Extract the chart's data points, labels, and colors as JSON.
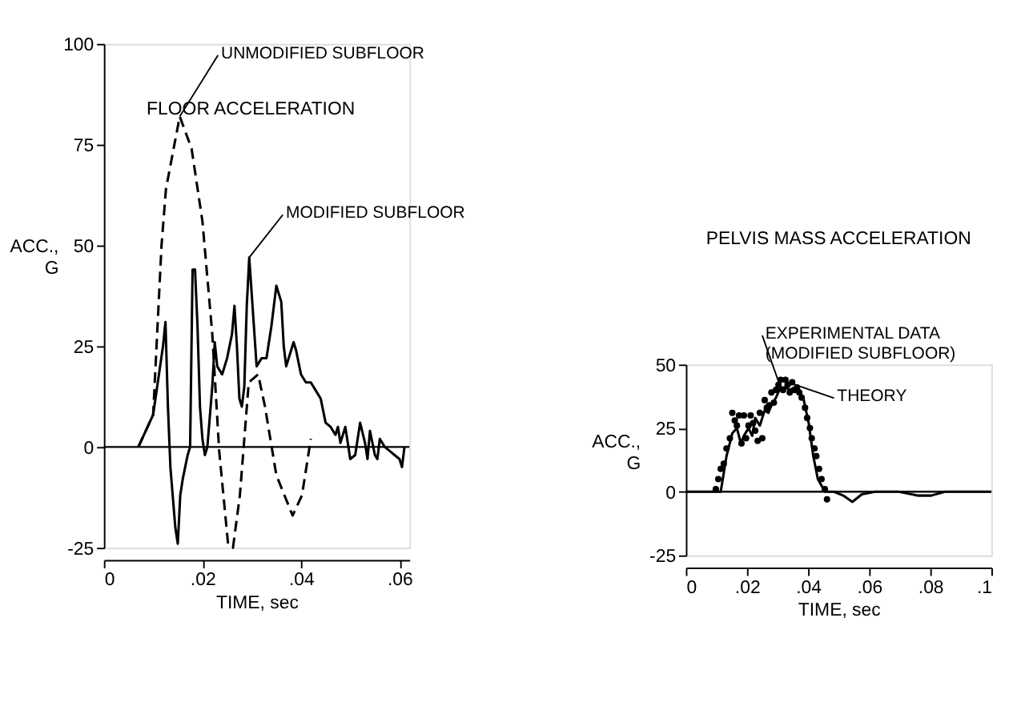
{
  "chart_data": [
    {
      "type": "line",
      "title": "FLOOR ACCELERATION",
      "xlabel": "TIME, sec",
      "ylabel": "ACC., G",
      "xlim": [
        0,
        0.062
      ],
      "xticks": [
        {
          "value": 0,
          "label": "0"
        },
        {
          "value": 0.02,
          "label": ".02"
        },
        {
          "value": 0.04,
          "label": ".04"
        },
        {
          "value": 0.06,
          "label": ".06"
        }
      ],
      "ylim": [
        -25,
        100
      ],
      "yticks": [
        -25,
        0,
        25,
        50,
        75,
        100
      ],
      "grid": false,
      "ref_lines": [
        {
          "axis": "y",
          "value": 0,
          "color": "#000000"
        }
      ],
      "series": [
        {
          "name": "UNMODIFIED SUBFLOOR",
          "color": "#000000",
          "line_style": "dashed",
          "x": [
            0.007,
            0.01,
            0.0117,
            0.0126,
            0.0154,
            0.0178,
            0.02,
            0.022,
            0.0234,
            0.0252,
            0.0262,
            0.0276,
            0.0294,
            0.0313,
            0.0327,
            0.035,
            0.0383,
            0.0402,
            0.042
          ],
          "values": [
            0,
            8,
            50,
            64,
            82,
            74,
            56,
            28,
            -1,
            -24,
            -25,
            -12,
            16,
            18,
            10,
            -7,
            -17,
            -12,
            2
          ]
        },
        {
          "name": "MODIFIED SUBFLOOR",
          "color": "#000000",
          "line_style": "solid",
          "x": [
            0.007,
            0.01,
            0.012,
            0.0125,
            0.013,
            0.0135,
            0.0145,
            0.015,
            0.0155,
            0.016,
            0.017,
            0.0175,
            0.018,
            0.0185,
            0.019,
            0.0195,
            0.02,
            0.0205,
            0.021,
            0.022,
            0.0225,
            0.023,
            0.024,
            0.025,
            0.026,
            0.0265,
            0.027,
            0.0275,
            0.028,
            0.0285,
            0.029,
            0.0295,
            0.03,
            0.031,
            0.032,
            0.033,
            0.034,
            0.035,
            0.036,
            0.0365,
            0.037,
            0.038,
            0.0385,
            0.039,
            0.04,
            0.041,
            0.042,
            0.043,
            0.044,
            0.045,
            0.046,
            0.047,
            0.0475,
            0.048,
            0.049,
            0.05,
            0.051,
            0.052,
            0.053,
            0.0535,
            0.054,
            0.055,
            0.0555,
            0.056,
            0.057,
            0.058,
            0.059,
            0.06,
            0.0605,
            0.061
          ],
          "values": [
            0,
            8,
            25,
            31,
            10,
            -5,
            -20,
            -24,
            -12,
            -8,
            -2,
            0,
            44,
            44,
            30,
            10,
            2,
            -2,
            0,
            15,
            26,
            20,
            18,
            22,
            28,
            35,
            25,
            12,
            10,
            15,
            35,
            47,
            38,
            20,
            22,
            22,
            30,
            40,
            36,
            25,
            20,
            24,
            26,
            24,
            18,
            16,
            16,
            14,
            12,
            6,
            5,
            3,
            5,
            1,
            5,
            -3,
            -2,
            6,
            1,
            -3,
            4,
            -2,
            -3,
            2,
            0,
            -1,
            -2,
            -3,
            -5,
            0
          ]
        }
      ]
    },
    {
      "type": "line",
      "title": "PELVIS MASS ACCELERATION",
      "xlabel": "TIME, sec",
      "ylabel": "ACC., G",
      "xlim": [
        0,
        0.1
      ],
      "xticks": [
        {
          "value": 0,
          "label": "0"
        },
        {
          "value": 0.02,
          "label": ".02"
        },
        {
          "value": 0.04,
          "label": ".04"
        },
        {
          "value": 0.06,
          "label": ".06"
        },
        {
          "value": 0.08,
          "label": ".08"
        },
        {
          "value": 0.1,
          "label": ".1"
        }
      ],
      "ylim": [
        -25,
        50
      ],
      "yticks": [
        -25,
        0,
        25,
        50
      ],
      "grid": false,
      "ref_lines": [
        {
          "axis": "y",
          "value": 0,
          "color": "#000000"
        }
      ],
      "series": [
        {
          "name": "EXPERIMENTAL DATA (MODIFIED SUBFLOOR)",
          "color": "#000000",
          "line_style": "solid",
          "x": [
            0,
            0.0098,
            0.0114,
            0.0133,
            0.0152,
            0.0167,
            0.018,
            0.019,
            0.0205,
            0.0217,
            0.0227,
            0.0242,
            0.0258,
            0.027,
            0.028,
            0.0295,
            0.031,
            0.0326,
            0.034,
            0.0356,
            0.0371,
            0.0386,
            0.0402,
            0.0417,
            0.0432,
            0.0455,
            0.0485,
            0.0515,
            0.0545,
            0.0576,
            0.062,
            0.0697,
            0.0758,
            0.0803,
            0.0848,
            0.091,
            0.1
          ],
          "values": [
            0,
            0,
            0,
            14,
            23,
            25,
            19,
            22,
            25,
            22,
            29,
            26,
            32,
            31,
            34,
            37,
            41,
            41,
            40,
            41,
            40,
            36,
            27,
            14,
            5,
            0,
            0,
            -1.5,
            -4,
            -1,
            0,
            0,
            -1.5,
            -1.5,
            0,
            0,
            0
          ]
        },
        {
          "name": "THEORY",
          "type": "scatter",
          "marker": "circle",
          "color": "#000000",
          "x": [
            0.0098,
            0.0106,
            0.0114,
            0.0124,
            0.0133,
            0.0144,
            0.0152,
            0.016,
            0.0167,
            0.0174,
            0.0182,
            0.019,
            0.0197,
            0.0205,
            0.0212,
            0.022,
            0.0227,
            0.0235,
            0.0242,
            0.025,
            0.0258,
            0.0265,
            0.0273,
            0.028,
            0.0288,
            0.0295,
            0.0303,
            0.031,
            0.0318,
            0.0326,
            0.0333,
            0.034,
            0.0348,
            0.0356,
            0.0364,
            0.0371,
            0.0379,
            0.039,
            0.0397,
            0.0406,
            0.0412,
            0.0421,
            0.0427,
            0.0436,
            0.0444,
            0.0455,
            0.0462
          ],
          "values": [
            1,
            5,
            9,
            11,
            17,
            21,
            31,
            28,
            26,
            30,
            19,
            30,
            21,
            26,
            30,
            27,
            24,
            20,
            31,
            21,
            36,
            33,
            34,
            39,
            35,
            40,
            42,
            44,
            40,
            44,
            42,
            39,
            43,
            40,
            41,
            39,
            37,
            33,
            29,
            25,
            21,
            17,
            14,
            9,
            5,
            1,
            -3
          ]
        }
      ]
    }
  ]
}
